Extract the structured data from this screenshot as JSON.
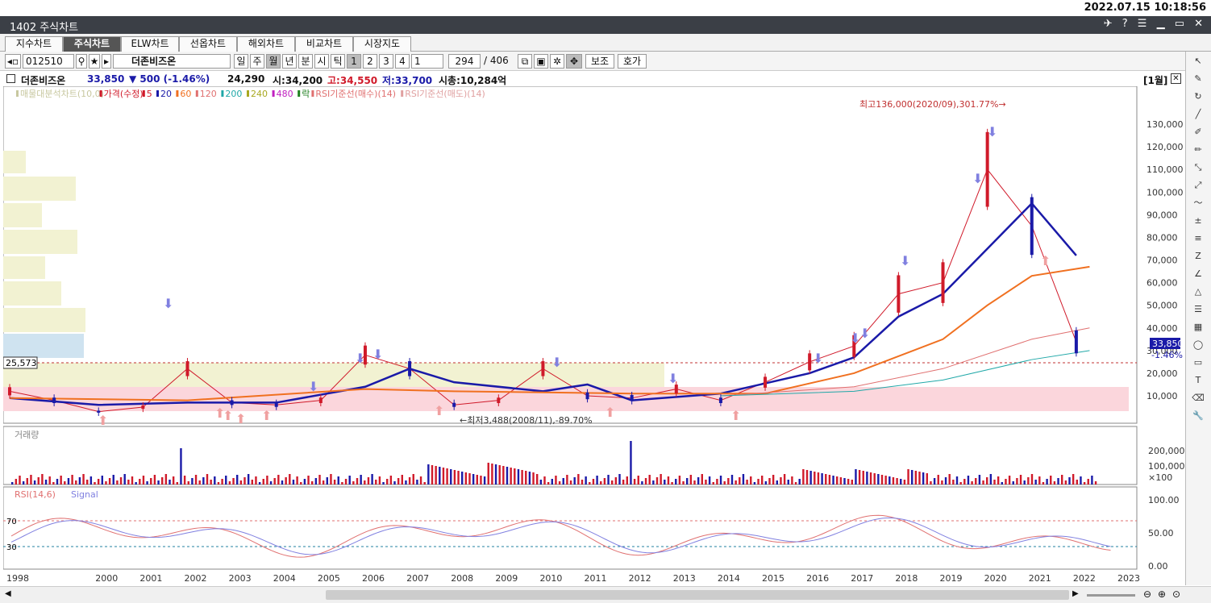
{
  "clock": "2022.07.15 10:18:56",
  "window": {
    "title": "1402 주식차트",
    "controls": "✈ ? ☰ ▁ ▭ ✕"
  },
  "tabs": [
    "지수차트",
    "주식차트",
    "ELW차트",
    "선옵차트",
    "해외차트",
    "비교차트",
    "시장지도"
  ],
  "toolbar": {
    "code": "012510",
    "name": "더존비즈온",
    "periods": [
      "일",
      "주",
      "월",
      "년",
      "분",
      "시",
      "틱"
    ],
    "numbers": [
      "1",
      "2",
      "3",
      "4"
    ],
    "interval_value": "1",
    "count_value": "294",
    "total": "/ 406",
    "aux_label": "보조",
    "quote_label": "호가"
  },
  "info": {
    "name": "더존비즈온",
    "price": "33,850",
    "change": "▼ 500 (-1.46%)",
    "volume": "24,290",
    "open": "시:34,200",
    "high": "고:34,550",
    "low": "저:33,700",
    "mcap": "시총:10,284억",
    "period_badge": "[1월]"
  },
  "legend_main": [
    "매물대분석차트(10,0)",
    "가격(수정)",
    "5",
    "20",
    "60",
    "120",
    "200",
    "240",
    "480",
    "락",
    "RSI기준선(매수)(14)",
    "RSI기준선(매도)(14)"
  ],
  "legend_colors": {
    "price": "#d01a2a",
    "ma5": "#d01a2a",
    "ma20": "#1a1aa8",
    "ma60": "#f07020",
    "ma120": "#e07070",
    "ma200": "#20a8a8",
    "ma240": "#a8a820",
    "ma480": "#c020c0",
    "rak": "#208020",
    "rsi": "#e07070"
  },
  "annotations": {
    "high": "최고136,000(2020/09),301.77%→",
    "low": "←최저3,488(2008/11),-89.70%",
    "level_label": "25,573",
    "last_price": "33,850",
    "last_change": "-1.46%"
  },
  "price_axis": [
    "130,000",
    "120,000",
    "110,000",
    "100,000",
    "90,000",
    "80,000",
    "70,000",
    "60,000",
    "50,000",
    "40,000",
    "30,000",
    "20,000",
    "10,000"
  ],
  "volume_legend": "거래량",
  "volume_axis": [
    "200,000",
    "100,000",
    "×100"
  ],
  "rsi_legend": [
    "RSI(14,6)",
    "Signal"
  ],
  "rsi_axis": [
    "100.00",
    "50.00",
    "0.00"
  ],
  "rsi_levels": [
    "70",
    "30"
  ],
  "years": [
    "1998",
    "2000",
    "2001",
    "2002",
    "2003",
    "2004",
    "2005",
    "2006",
    "2007",
    "2008",
    "2009",
    "2010",
    "2011",
    "2012",
    "2013",
    "2014",
    "2015",
    "2016",
    "2017",
    "2018",
    "2019",
    "2020",
    "2021",
    "2022",
    "2023"
  ],
  "chart_data": {
    "type": "line",
    "series": [
      {
        "name": "가격(수정)",
        "x": [
          1998,
          1999,
          2000,
          2001,
          2002,
          2003,
          2004,
          2005,
          2006,
          2007,
          2008,
          2009,
          2010,
          2011,
          2012,
          2013,
          2014,
          2015,
          2016,
          2017,
          2018,
          2019,
          2020,
          2021,
          2022
        ],
        "values": [
          12000,
          8000,
          3000,
          5000,
          22000,
          7000,
          6000,
          8000,
          28000,
          22000,
          6000,
          8000,
          22000,
          10000,
          9000,
          13000,
          8000,
          16000,
          25000,
          32000,
          55000,
          60000,
          110000,
          85000,
          33850
        ]
      },
      {
        "name": "20",
        "x": [
          1998,
          2000,
          2002,
          2004,
          2006,
          2007,
          2008,
          2010,
          2011,
          2012,
          2014,
          2016,
          2017,
          2018,
          2019,
          2020,
          2021,
          2022
        ],
        "values": [
          9000,
          6000,
          7000,
          7000,
          14000,
          22000,
          16000,
          12000,
          15000,
          8000,
          11000,
          20000,
          27000,
          45000,
          55000,
          75000,
          95000,
          72000
        ]
      }
    ]
  }
}
